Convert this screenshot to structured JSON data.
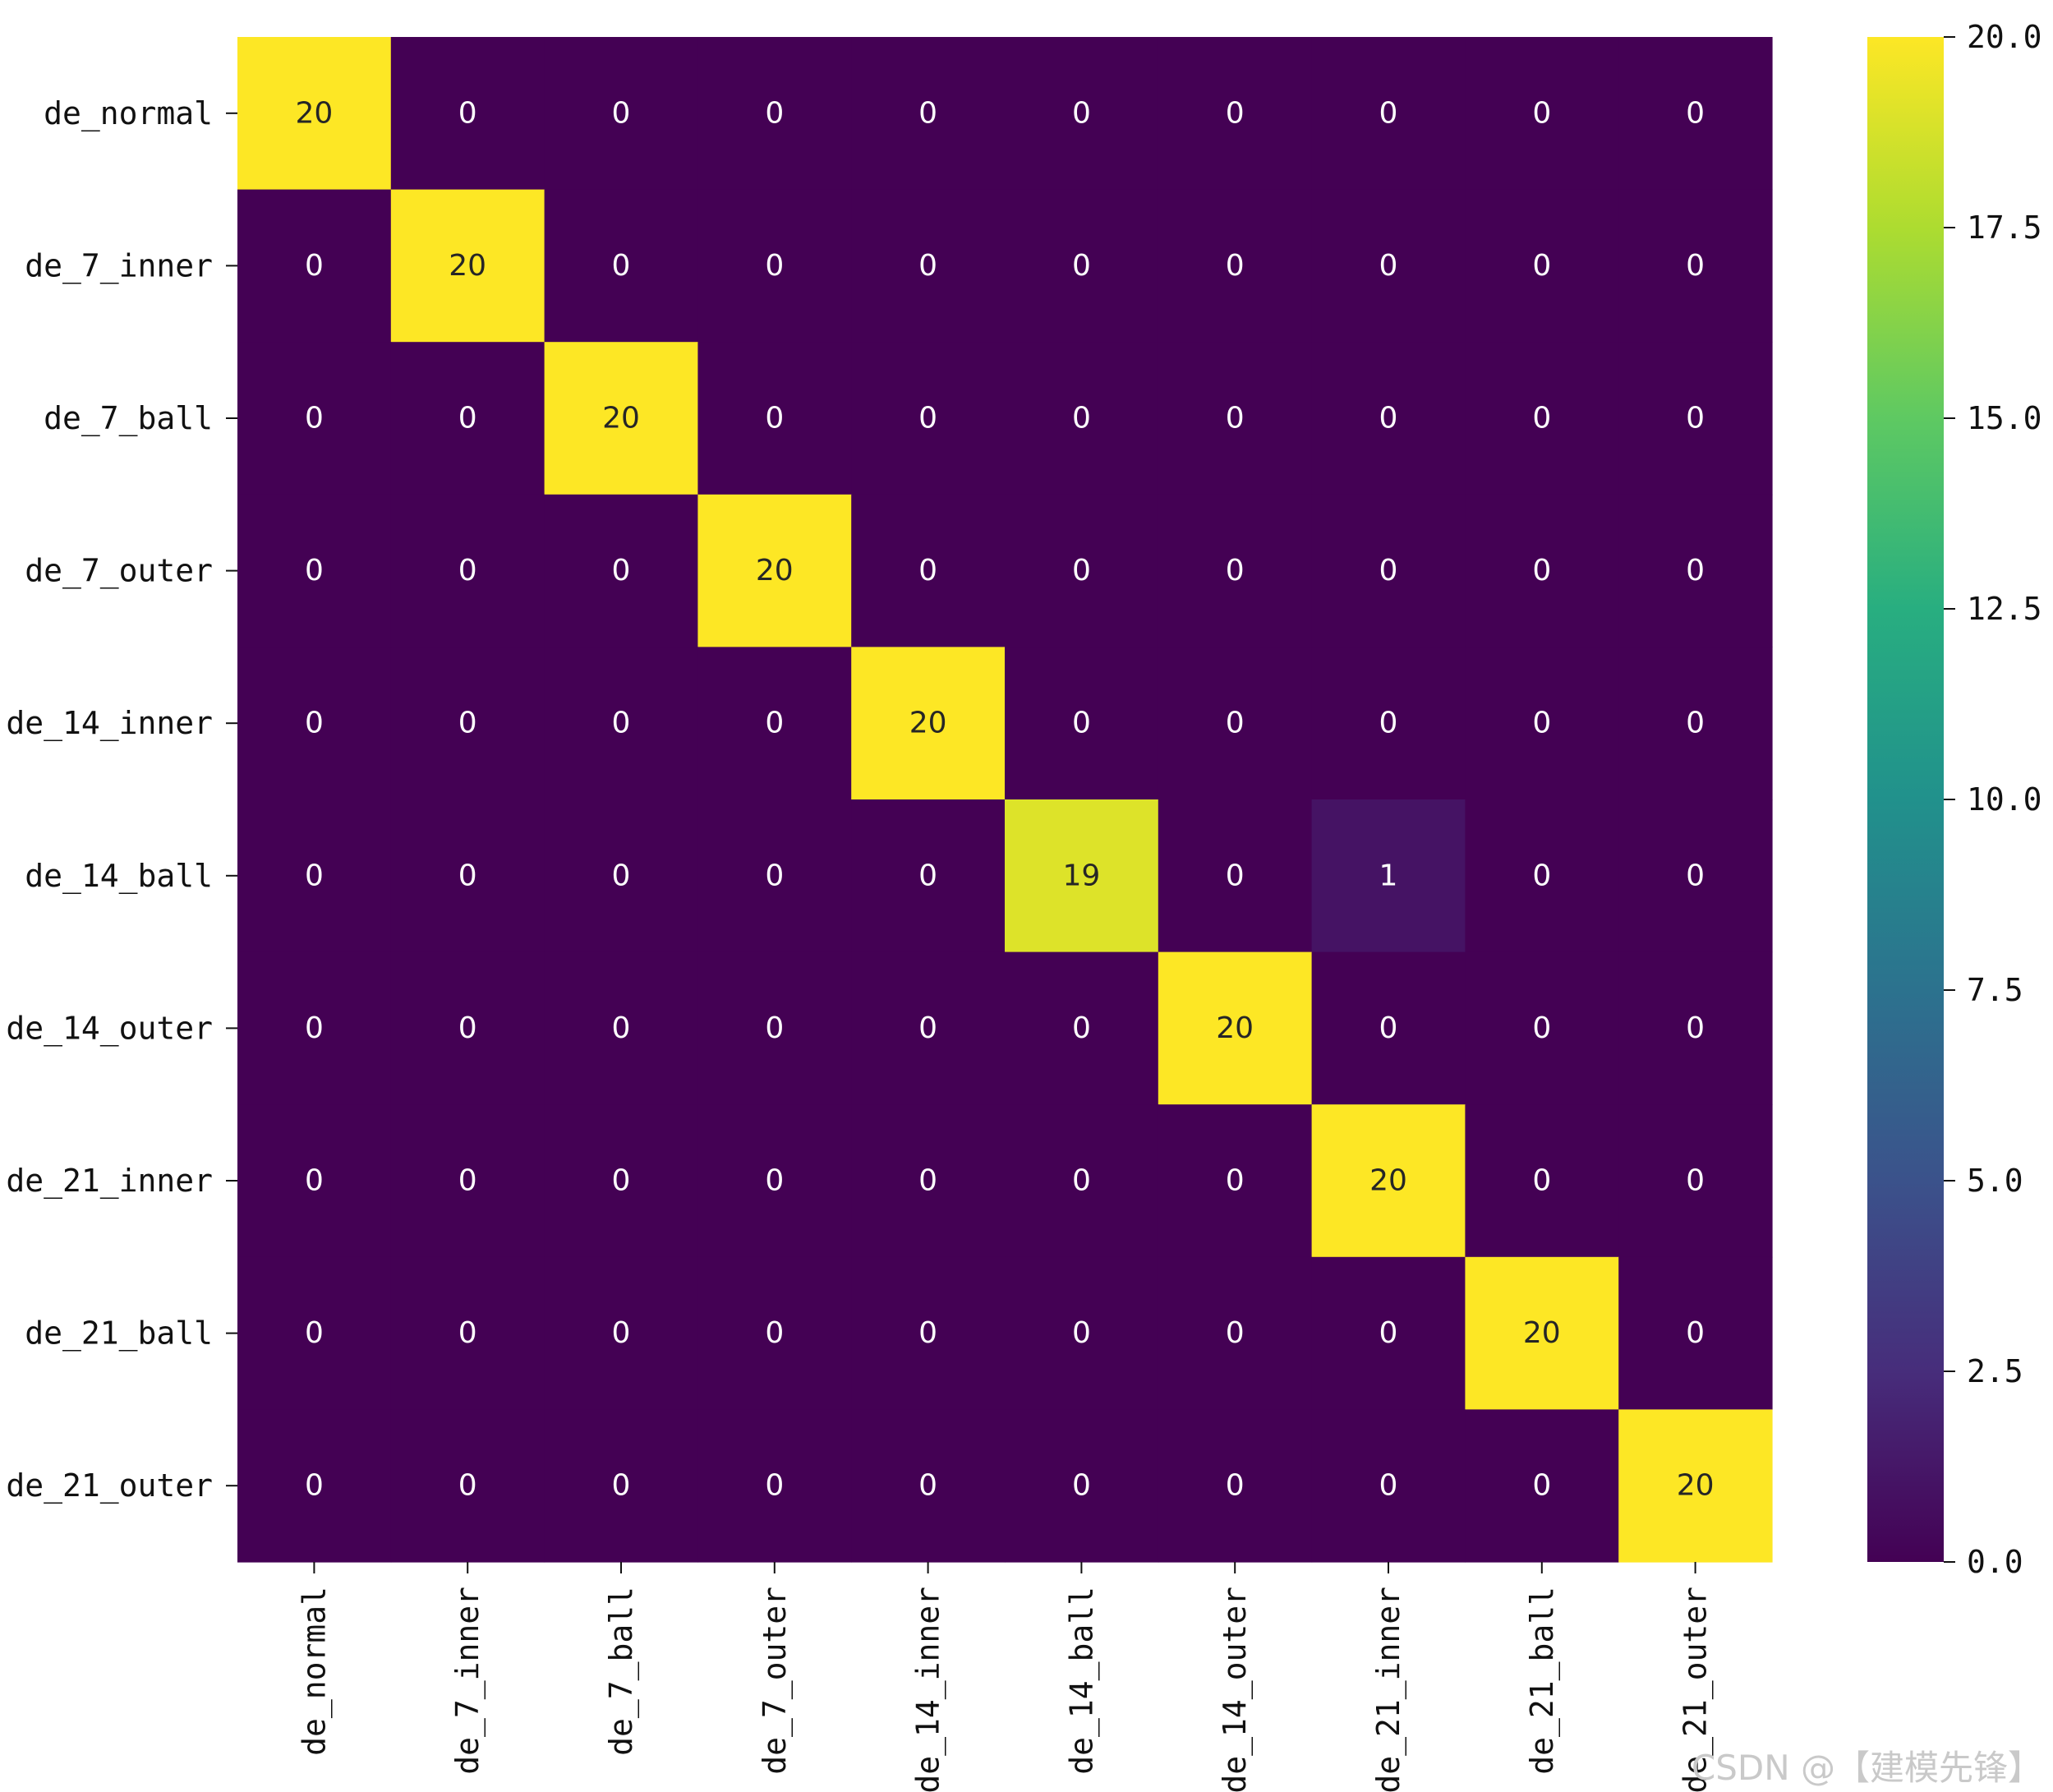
{
  "chart_data": {
    "type": "heatmap",
    "title": "",
    "xlabel": "",
    "ylabel": "",
    "colormap": "viridis",
    "row_labels": [
      "de_normal",
      "de_7_inner",
      "de_7_ball",
      "de_7_outer",
      "de_14_inner",
      "de_14_ball",
      "de_14_outer",
      "de_21_inner",
      "de_21_ball",
      "de_21_outer"
    ],
    "col_labels": [
      "de_normal",
      "de_7_inner",
      "de_7_ball",
      "de_7_outer",
      "de_14_inner",
      "de_14_ball",
      "de_14_outer",
      "de_21_inner",
      "de_21_ball",
      "de_21_outer"
    ],
    "values": [
      [
        20,
        0,
        0,
        0,
        0,
        0,
        0,
        0,
        0,
        0
      ],
      [
        0,
        20,
        0,
        0,
        0,
        0,
        0,
        0,
        0,
        0
      ],
      [
        0,
        0,
        20,
        0,
        0,
        0,
        0,
        0,
        0,
        0
      ],
      [
        0,
        0,
        0,
        20,
        0,
        0,
        0,
        0,
        0,
        0
      ],
      [
        0,
        0,
        0,
        0,
        20,
        0,
        0,
        0,
        0,
        0
      ],
      [
        0,
        0,
        0,
        0,
        0,
        19,
        0,
        1,
        0,
        0
      ],
      [
        0,
        0,
        0,
        0,
        0,
        0,
        20,
        0,
        0,
        0
      ],
      [
        0,
        0,
        0,
        0,
        0,
        0,
        0,
        20,
        0,
        0
      ],
      [
        0,
        0,
        0,
        0,
        0,
        0,
        0,
        0,
        20,
        0
      ],
      [
        0,
        0,
        0,
        0,
        0,
        0,
        0,
        0,
        0,
        20
      ]
    ],
    "colorbar": {
      "range": [
        0,
        20
      ],
      "ticks": [
        0,
        2.5,
        5,
        7.5,
        10,
        12.5,
        15,
        17.5,
        20
      ],
      "tick_labels": [
        "0.0",
        "2.5",
        "5.0",
        "7.5",
        "10.0",
        "12.5",
        "15.0",
        "17.5",
        "20.0"
      ]
    }
  },
  "watermark": "CSDN @【建模先锋】"
}
